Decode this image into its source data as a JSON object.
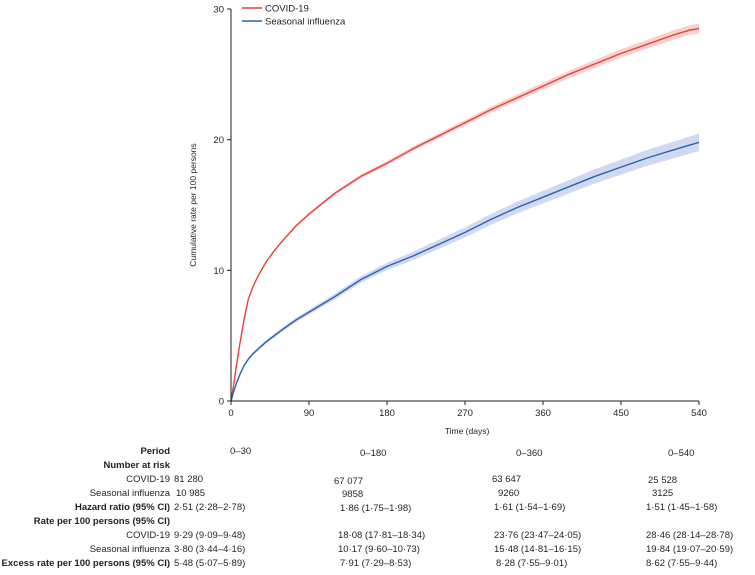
{
  "chart_data": {
    "type": "line",
    "title": "",
    "xlabel": "Time (days)",
    "ylabel": "Cumulative rate per 100 persons",
    "xlim": [
      0,
      540
    ],
    "ylim": [
      0,
      30
    ],
    "xticks": [
      0,
      90,
      180,
      270,
      360,
      450,
      540
    ],
    "yticks": [
      0,
      10,
      20,
      30
    ],
    "grid": false,
    "legend_position": "top-left",
    "series": [
      {
        "name": "COVID-19",
        "color": "#e8413c",
        "band_color": "#f7c9c4",
        "x": [
          0,
          3,
          6,
          10,
          15,
          20,
          25,
          30,
          40,
          50,
          60,
          75,
          90,
          120,
          150,
          180,
          210,
          240,
          270,
          300,
          330,
          360,
          390,
          420,
          450,
          480,
          510,
          530,
          540
        ],
        "y": [
          0,
          1.2,
          2.6,
          4.3,
          6.2,
          7.8,
          8.7,
          9.4,
          10.6,
          11.5,
          12.3,
          13.4,
          14.3,
          15.9,
          17.2,
          18.2,
          19.3,
          20.3,
          21.3,
          22.3,
          23.2,
          24.1,
          25.0,
          25.8,
          26.6,
          27.3,
          28.0,
          28.4,
          28.5
        ],
        "ci": 0.25
      },
      {
        "name": "Seasonal influenza",
        "color": "#2a63b0",
        "band_color": "#c9d2ee",
        "x": [
          0,
          3,
          6,
          10,
          15,
          20,
          25,
          30,
          40,
          50,
          60,
          75,
          90,
          120,
          150,
          180,
          210,
          240,
          270,
          300,
          330,
          360,
          390,
          420,
          450,
          480,
          510,
          540
        ],
        "y": [
          0,
          0.7,
          1.3,
          2.0,
          2.7,
          3.2,
          3.6,
          3.9,
          4.5,
          5.0,
          5.5,
          6.2,
          6.8,
          8.0,
          9.3,
          10.3,
          11.1,
          12.0,
          12.9,
          13.9,
          14.8,
          15.6,
          16.4,
          17.2,
          17.9,
          18.6,
          19.2,
          19.8
        ],
        "ci": 0.45
      }
    ]
  },
  "table": {
    "period_label": "Period",
    "periods": [
      "0–30",
      "0–180",
      "0–360",
      "0–540"
    ],
    "number_at_risk_label": "Number at risk",
    "covid_label": "COVID-19",
    "flu_label": "Seasonal influenza",
    "covid_at_risk": [
      "81 280",
      "67 077",
      "63 647",
      "25 528"
    ],
    "flu_at_risk": [
      "10 985",
      "9858",
      "9260",
      "3125"
    ],
    "hazard_label": "Hazard ratio (95% CI)",
    "hazard": [
      "2·51 (2·28–2·78)",
      "1·86 (1·75–1·98)",
      "1·61 (1·54–1·69)",
      "1·51 (1·45–1·58)"
    ],
    "rate_label": "Rate per 100 persons (95% CI)",
    "covid_rate": [
      "9·29 (9·09–9·48)",
      "18·08 (17·81–18·34)",
      "23·76 (23·47–24·05)",
      "28·46 (28·14–28·78)"
    ],
    "flu_rate": [
      "3·80 (3·44–4·16)",
      "10·17 (9·60–10·73)",
      "15·48 (14·81–16·15)",
      "19·84 (19·07–20·59)"
    ],
    "excess_label": "Excess rate per 100 persons (95% CI)",
    "excess": [
      "5·48 (5·07–5·89)",
      "7·91 (7·29–8·53)",
      "8·28 (7·55–9·01)",
      "8·62 (7·55–9·44)"
    ]
  }
}
